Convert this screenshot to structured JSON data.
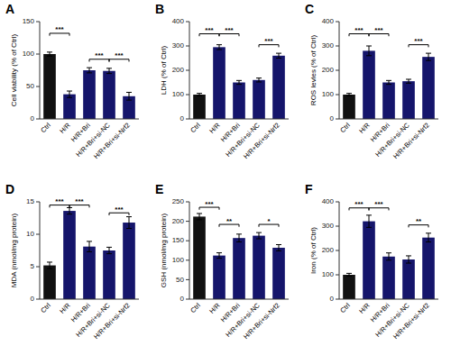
{
  "chart_data": [
    {
      "type": "bar",
      "title": "A",
      "ylabel": "Cell viability (% of Ctrl)",
      "categories": [
        "Ctrl",
        "H/R",
        "H/R+Bri",
        "H/R+Bri+si-NC",
        "H/R+Bri+si-Nrf2"
      ],
      "values": [
        100,
        38,
        75,
        74,
        35
      ],
      "errors": [
        3,
        5,
        4,
        4,
        6
      ],
      "colors": [
        "#111111",
        "#15156b",
        "#15156b",
        "#15156b",
        "#15156b"
      ],
      "ylim": [
        0,
        150
      ],
      "yticks": [
        0,
        50,
        100,
        150
      ],
      "annotations": [
        {
          "text": "***",
          "x1": "Ctrl",
          "x2": "H/R",
          "y": 132
        },
        {
          "text": "***",
          "x1": "H/R+Bri",
          "x2": "H/R+Bri+si-NC",
          "y": 92
        },
        {
          "text": "***",
          "x1": "H/R+Bri+si-NC",
          "x2": "H/R+Bri+si-Nrf2",
          "y": 92
        }
      ]
    },
    {
      "type": "bar",
      "title": "B",
      "ylabel": "LDH (% of Ctrl)",
      "categories": [
        "Ctrl",
        "H/R",
        "H/R+Bri",
        "H/R+Bri+si-NC",
        "H/R+Bri+si-Nrf2"
      ],
      "values": [
        100,
        295,
        150,
        160,
        260
      ],
      "errors": [
        5,
        10,
        8,
        8,
        10
      ],
      "colors": [
        "#111111",
        "#15156b",
        "#15156b",
        "#15156b",
        "#15156b"
      ],
      "ylim": [
        0,
        400
      ],
      "yticks": [
        0,
        100,
        200,
        300,
        400
      ],
      "annotations": [
        {
          "text": "***",
          "x1": "Ctrl",
          "x2": "H/R",
          "y": 350
        },
        {
          "text": "***",
          "x1": "H/R",
          "x2": "H/R+Bri",
          "y": 350
        },
        {
          "text": "***",
          "x1": "H/R+Bri+si-NC",
          "x2": "H/R+Bri+si-Nrf2",
          "y": 305
        }
      ]
    },
    {
      "type": "bar",
      "title": "C",
      "ylabel": "ROS levles (% of Ctrl)",
      "categories": [
        "Ctrl",
        "H/R",
        "H/R+Bri",
        "H/R+Bri+si-NC",
        "H/R+Bri+si-Nrf2"
      ],
      "values": [
        100,
        280,
        150,
        155,
        255
      ],
      "errors": [
        5,
        20,
        8,
        8,
        15
      ],
      "colors": [
        "#111111",
        "#15156b",
        "#15156b",
        "#15156b",
        "#15156b"
      ],
      "ylim": [
        0,
        400
      ],
      "yticks": [
        0,
        100,
        200,
        300,
        400
      ],
      "annotations": [
        {
          "text": "***",
          "x1": "Ctrl",
          "x2": "H/R",
          "y": 350
        },
        {
          "text": "***",
          "x1": "H/R",
          "x2": "H/R+Bri",
          "y": 350
        },
        {
          "text": "***",
          "x1": "H/R+Bri+si-NC",
          "x2": "H/R+Bri+si-Nrf2",
          "y": 305
        }
      ]
    },
    {
      "type": "bar",
      "title": "D",
      "ylabel": "MDA (nmol/mg protein)",
      "categories": [
        "Ctrl",
        "H/R",
        "H/R+Bri",
        "H/R+Bri+si-NC",
        "H/R+Bri+si-Nrf2"
      ],
      "values": [
        5.2,
        13.6,
        8.1,
        7.5,
        11.8
      ],
      "errors": [
        0.5,
        0.5,
        0.8,
        0.5,
        0.9
      ],
      "colors": [
        "#111111",
        "#15156b",
        "#15156b",
        "#15156b",
        "#15156b"
      ],
      "ylim": [
        0,
        15
      ],
      "yticks": [
        0,
        5,
        10,
        15
      ],
      "annotations": [
        {
          "text": "***",
          "x1": "Ctrl",
          "x2": "H/R",
          "y": 14.5
        },
        {
          "text": "***",
          "x1": "H/R",
          "x2": "H/R+Bri",
          "y": 14.5
        },
        {
          "text": "***",
          "x1": "H/R+Bri+si-NC",
          "x2": "H/R+Bri+si-Nrf2",
          "y": 13.3
        }
      ]
    },
    {
      "type": "bar",
      "title": "E",
      "ylabel": "GSH (nmol/mg protein)",
      "categories": [
        "Ctrl",
        "H/R",
        "H/R+Bri",
        "H/R+Bri+si-NC",
        "H/R+Bri+si-Nrf2"
      ],
      "values": [
        212,
        112,
        157,
        163,
        132
      ],
      "errors": [
        8,
        7,
        10,
        8,
        8
      ],
      "colors": [
        "#111111",
        "#15156b",
        "#15156b",
        "#15156b",
        "#15156b"
      ],
      "ylim": [
        0,
        250
      ],
      "yticks": [
        0,
        50,
        100,
        150,
        200,
        250
      ],
      "annotations": [
        {
          "text": "***",
          "x1": "Ctrl",
          "x2": "H/R",
          "y": 236
        },
        {
          "text": "**",
          "x1": "H/R",
          "x2": "H/R+Bri",
          "y": 192
        },
        {
          "text": "*",
          "x1": "H/R+Bri+si-NC",
          "x2": "H/R+Bri+si-Nrf2",
          "y": 192
        }
      ]
    },
    {
      "type": "bar",
      "title": "F",
      "ylabel": "Iron (% of Ctrl)",
      "categories": [
        "Ctrl",
        "H/R",
        "H/R+Bri",
        "H/R+Bri+si-NC",
        "H/R+Bri+si-Nrf2"
      ],
      "values": [
        100,
        320,
        175,
        163,
        253
      ],
      "errors": [
        6,
        25,
        15,
        15,
        18
      ],
      "colors": [
        "#111111",
        "#15156b",
        "#15156b",
        "#15156b",
        "#15156b"
      ],
      "ylim": [
        0,
        400
      ],
      "yticks": [
        0,
        100,
        200,
        300,
        400
      ],
      "annotations": [
        {
          "text": "***",
          "x1": "Ctrl",
          "x2": "H/R",
          "y": 375
        },
        {
          "text": "***",
          "x1": "H/R",
          "x2": "H/R+Bri",
          "y": 375
        },
        {
          "text": "**",
          "x1": "H/R+Bri+si-NC",
          "x2": "H/R+Bri+si-Nrf2",
          "y": 305
        }
      ]
    }
  ]
}
